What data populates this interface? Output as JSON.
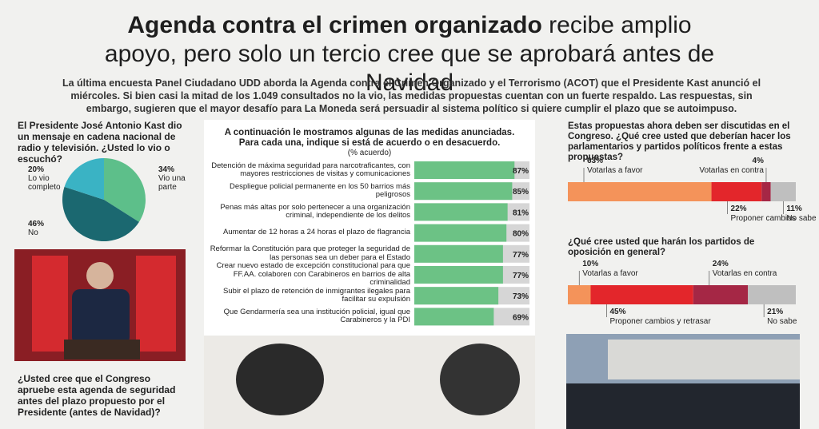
{
  "headline": {
    "bold": "Agenda contra el crimen organizado",
    "rest": "recibe amplio apoyo, pero solo un tercio cree que se aprobará antes de Navidad"
  },
  "intro": "La última encuesta Panel Ciudadano UDD aborda la Agenda contra el Crimen Organizado y el Terrorismo (ACOT) que el Presidente Kast anunció el miércoles. Si bien casi la mitad de los 1.049 consultados no la vio, las medidas propuestas cuentan con un fuerte respaldo. Las respuestas, sin embargo, sugieren que el mayor desafío para La Moneda será persuadir al sistema político si quiere cumplir el plazo que se autoimpuso.",
  "question": "¿Usted cree que el Congreso apruebe esta agenda de seguridad antes del plazo propuesto por el Presidente (antes de Navidad)?",
  "chart_data": [
    {
      "type": "pie",
      "title": "El Presidente José Antonio Kast dio un mensaje en cadena nacional de radio y televisión. ¿Usted lo vio o escuchó?",
      "categories": [
        "Vio una parte",
        "No",
        "Lo vio completo"
      ],
      "values": [
        34,
        46,
        20
      ],
      "value_labels": [
        "34%",
        "46%",
        "20%"
      ],
      "colors": [
        "#5dbf8a",
        "#1b6870",
        "#3ab3c4"
      ]
    },
    {
      "type": "hbar",
      "title": "A continuación le mostramos algunas de las medidas anunciadas. Para cada una, indique si está de acuerdo o en desacuerdo.",
      "subtitle": "(% acuerdo)",
      "categories": [
        "Detención de máxima seguridad para narcotraficantes, con mayores restricciones de visitas y comunicaciones",
        "Despliegue policial permanente en los 50 barrios más peligrosos",
        "Penas más altas por solo pertenecer a una organización criminal, independiente de los delitos",
        "Aumentar de 12 horas a 24 horas el plazo de flagrancia",
        "Reformar la Constitución para que proteger la seguridad de las personas sea un deber para el Estado",
        "Crear nuevo estado de excepción constitucional para que FF.AA. colaboren con Carabineros en barrios de alta criminalidad",
        "Subir el plazo de retención de inmigrantes ilegales para facilitar su expulsión",
        "Que Gendarmería sea una institución policial, igual que Carabineros y la PDI"
      ],
      "values": [
        87,
        85,
        81,
        80,
        77,
        77,
        73,
        69
      ],
      "value_labels": [
        "87%",
        "85%",
        "81%",
        "80%",
        "77%",
        "77%",
        "73%",
        "69%"
      ],
      "color": "#6cc285",
      "xlim": [
        0,
        100
      ]
    },
    {
      "type": "stacked_bar",
      "title": "Estas propuestas ahora deben ser discutidas en el Congreso. ¿Qué cree usted que deberían hacer los parlamentarios y partidos políticos frente a estas propuestas?",
      "xlim": [
        0,
        100
      ],
      "series": [
        {
          "name": "Votarlas a favor",
          "color": "#f4935a",
          "values": [
            63
          ],
          "value_labels": [
            "63%"
          ]
        },
        {
          "name": "Proponer cambios",
          "color": "#e3262b",
          "values": [
            22
          ],
          "value_labels": [
            "22%"
          ]
        },
        {
          "name": "Votarlas en contra",
          "color": "#a52745",
          "values": [
            4
          ],
          "value_labels": [
            "4%"
          ]
        },
        {
          "name": "No sabe",
          "color": "#bfbfbf",
          "values": [
            11
          ],
          "value_labels": [
            "11%"
          ]
        }
      ]
    },
    {
      "type": "stacked_bar",
      "title": "¿Qué cree usted que harán los partidos de oposición en general?",
      "xlim": [
        0,
        100
      ],
      "series": [
        {
          "name": "Votarlas a favor",
          "color": "#f4935a",
          "values": [
            10
          ],
          "value_labels": [
            "10%"
          ]
        },
        {
          "name": "Proponer cambios y retrasar",
          "color": "#e3262b",
          "values": [
            45
          ],
          "value_labels": [
            "45%"
          ]
        },
        {
          "name": "Votarlas en contra",
          "color": "#a52745",
          "values": [
            24
          ],
          "value_labels": [
            "24%"
          ]
        },
        {
          "name": "No sabe",
          "color": "#bfbfbf",
          "values": [
            21
          ],
          "value_labels": [
            "21%"
          ]
        }
      ]
    }
  ]
}
